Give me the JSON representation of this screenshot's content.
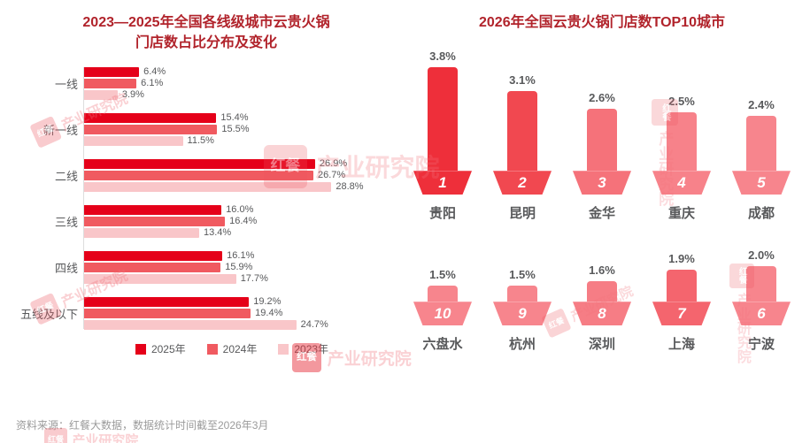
{
  "left_chart": {
    "title_line1": "2023—2025年全国各线级城市云贵火锅",
    "title_line2": "门店数占比分布及变化"
  },
  "right_chart": {
    "title": "2026年全国云贵火锅门店数TOP10城市"
  },
  "watermark": {
    "logo_text": "红餐",
    "label": "产业研究院"
  },
  "footer": {
    "source": "资料来源：红餐大数据，数据统计时间截至2026年3月"
  },
  "colors": {
    "title_red": "#b1232b",
    "series_2025": "#e50019",
    "series_2024": "#f05a60",
    "series_2023": "#f9c6c9",
    "text_gray": "#58595b",
    "footer_gray": "#9b9b9b"
  },
  "chart_data": [
    {
      "type": "bar",
      "orientation": "horizontal",
      "title": "2023—2025年全国各线级城市云贵火锅门店数占比分布及变化",
      "categories": [
        "一线",
        "新一线",
        "二线",
        "三线",
        "四线",
        "五线及以下"
      ],
      "series": [
        {
          "name": "2025年",
          "color": "#e50019",
          "values": [
            6.4,
            15.4,
            26.9,
            16.0,
            16.1,
            19.2
          ]
        },
        {
          "name": "2024年",
          "color": "#f05a60",
          "values": [
            6.1,
            15.5,
            26.7,
            16.4,
            15.9,
            19.4
          ]
        },
        {
          "name": "2023年",
          "color": "#f9c6c9",
          "values": [
            3.9,
            11.5,
            28.8,
            13.4,
            17.7,
            24.7
          ]
        }
      ],
      "value_suffix": "%",
      "xlim": [
        0,
        30
      ],
      "grid": false,
      "legend_position": "bottom"
    },
    {
      "type": "bar",
      "orientation": "vertical",
      "title": "2026年全国云贵火锅门店数TOP10城市",
      "value_suffix": "%",
      "ylim": [
        0,
        4
      ],
      "grid": false,
      "rows": [
        [
          {
            "rank": 1,
            "city": "贵阳",
            "value": 3.8,
            "color": "#ee2f3a"
          },
          {
            "rank": 2,
            "city": "昆明",
            "value": 3.1,
            "color": "#f14850"
          },
          {
            "rank": 3,
            "city": "金华",
            "value": 2.6,
            "color": "#f5727a"
          },
          {
            "rank": 4,
            "city": "重庆",
            "value": 2.5,
            "color": "#f7828a"
          },
          {
            "rank": 5,
            "city": "成都",
            "value": 2.4,
            "color": "#f7858d"
          }
        ],
        [
          {
            "rank": 10,
            "city": "六盘水",
            "value": 1.5,
            "color": "#f7858d"
          },
          {
            "rank": 9,
            "city": "杭州",
            "value": 1.5,
            "color": "#f7858d"
          },
          {
            "rank": 8,
            "city": "深圳",
            "value": 1.6,
            "color": "#f67d85"
          },
          {
            "rank": 7,
            "city": "上海",
            "value": 1.9,
            "color": "#f4656e"
          },
          {
            "rank": 6,
            "city": "宁波",
            "value": 2.0,
            "color": "#f7858d"
          }
        ]
      ]
    }
  ]
}
